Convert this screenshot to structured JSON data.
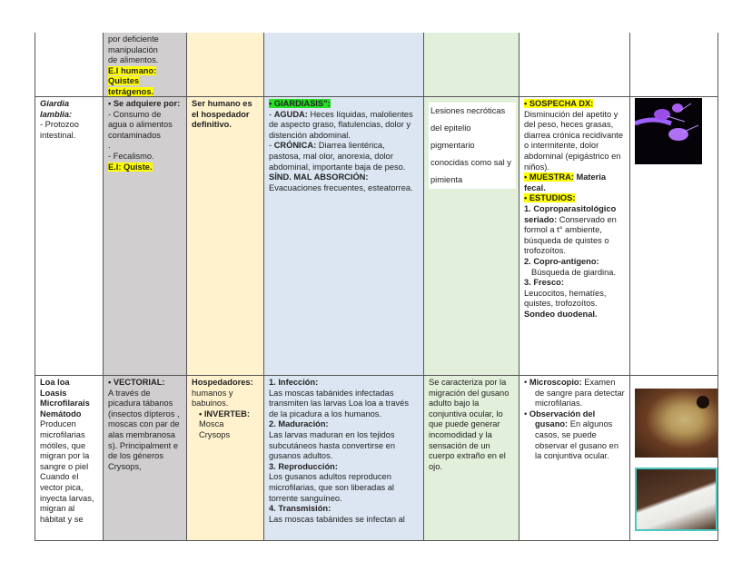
{
  "rows": [
    {
      "cells": [
        [],
        [
          [
            {
              "t": "por deficiente"
            }
          ],
          [
            {
              "t": "manipulación"
            }
          ],
          [
            {
              "t": "de alimentos."
            }
          ],
          [
            {
              "t": "E.I humano:",
              "s": "b hl"
            }
          ],
          [
            {
              "t": "Quistes",
              "s": "b hl"
            }
          ],
          [
            {
              "t": "tetrágenos.",
              "s": "b hl"
            }
          ]
        ],
        [],
        [],
        [],
        [],
        []
      ]
    },
    {
      "cells": [
        [
          [
            {
              "t": "Giardia lamblia:",
              "s": "b i"
            }
          ],
          [
            {
              "t": "- Protozoo intestinal."
            }
          ]
        ],
        [
          [
            {
              "t": "• Se adquiere por:",
              "s": "b"
            }
          ],
          [
            {
              "t": "- Consumo de agua o alimentos contaminados"
            }
          ],
          [
            {
              "t": "."
            }
          ],
          [
            {
              "t": "- Fecalismo."
            }
          ],
          [
            {
              "t": "E.I: Quiste.",
              "s": "b hl"
            }
          ]
        ],
        [
          [
            {
              "t": "Ser humano es el hospedador definitivo.",
              "s": "b"
            }
          ]
        ],
        [
          [
            {
              "t": "• GIARDIASIS\":",
              "s": "b g"
            }
          ],
          [
            {
              "t": "- "
            },
            {
              "t": "AGUDA:",
              "s": "b"
            },
            {
              "t": " Heces líquidas, malolientes de aspecto graso, flatulencias, dolor y distención abdominal."
            }
          ],
          [
            {
              "t": "- "
            },
            {
              "t": "CRÓNICA:",
              "s": "b"
            },
            {
              "t": " Diarrea lientérica, pastosa, mal olor, anorexia, dolor abdominal, importante baja de peso."
            }
          ],
          [
            {
              "t": "SÍND. MAL ABSORCIÓN:",
              "s": "b"
            }
          ],
          [
            {
              "t": "Evacuaciones frecuentes, esteatorrea."
            }
          ]
        ],
        [
          [
            {
              "t": "Lesiones necróticas del epitelio pigmentario conocidas como sal y pimienta"
            }
          ]
        ],
        [
          [
            {
              "t": "• SOSPECHA DX:",
              "s": "b hl"
            }
          ],
          [
            {
              "t": "Disminución del apetito y del peso, heces grasas, diarrea crónica recidivante o intermitente, dolor abdominal (epigástrico en niños)."
            }
          ],
          [
            {
              "t": "• MUESTRA:",
              "s": "b hl"
            },
            {
              "t": " Materia fecal.",
              "s": "b"
            }
          ],
          [
            {
              "t": "• ESTUDIOS:",
              "s": "b hl"
            }
          ],
          [
            {
              "t": "1. Coproparasitológico seriado:",
              "s": "b"
            },
            {
              "t": " Conservado en formol a t° ambiente, búsqueda de quistes o trofozoítos."
            }
          ],
          [
            {
              "t": "2. Copro-antígeno:",
              "s": "b"
            }
          ],
          [
            {
              "t": "Búsqueda de giardina."
            }
          ],
          [
            {
              "t": "3. Fresco:",
              "s": "b"
            }
          ],
          [
            {
              "t": "Leucocitos, hematíes, quistes, trofozoítos."
            }
          ],
          [
            {
              "t": "Sondeo duodenal.",
              "s": "b"
            }
          ]
        ],
        []
      ]
    },
    {
      "cells": [
        [
          [
            {
              "t": "Loa loa",
              "s": "b"
            }
          ],
          [
            {
              "t": "Loasis",
              "s": "b"
            }
          ],
          [
            {
              "t": "Microfilarais",
              "s": "b"
            }
          ],
          [
            {
              "t": "Nemátodo",
              "s": "b"
            }
          ],
          [
            {
              "t": "Producen microfilarias mótiles, que migran por la sangre o piel Cuando el vector pica, inyecta larvas, migran al hábitat y se"
            }
          ]
        ],
        [
          [
            {
              "t": "• VECTORIAL:",
              "s": "b"
            }
          ],
          [
            {
              "t": "A través de picadura tábanos (insectos dípteros , moscas con par de alas membranosa s). Principalment e de los géneros Crysops,"
            }
          ]
        ],
        [
          [
            {
              "t": "Hospedadores:",
              "s": "b"
            }
          ],
          [
            {
              "t": "humanos y babuinos."
            }
          ],
          [
            {
              "t": " "
            }
          ],
          [
            {
              "t": "• INVERTEB:",
              "s": "b"
            }
          ],
          [
            {
              "t": "Mosca"
            }
          ],
          [
            {
              "t": "Crysops"
            }
          ]
        ],
        [
          [
            {
              "t": "1. Infección:",
              "s": "b"
            }
          ],
          [
            {
              "t": "Las moscas tabánides infectadas transmiten las larvas Loa loa a través de la picadura a los humanos."
            }
          ],
          [
            {
              "t": "2. Maduración:",
              "s": "b"
            }
          ],
          [
            {
              "t": "Las larvas maduran en los tejidos subcutáneos hasta convertirse en gusanos adultos."
            }
          ],
          [
            {
              "t": "3. Reproducción:",
              "s": "b"
            }
          ],
          [
            {
              "t": "Los gusanos adultos reproducen microfilarias, que son liberadas al torrente sanguíneo."
            }
          ],
          [
            {
              "t": "4. Transmisión:",
              "s": "b"
            }
          ],
          [
            {
              "t": "Las moscas tabánides se infectan al"
            }
          ]
        ],
        [
          [
            {
              "t": "Se caracteriza por la migración del gusano adulto bajo la conjuntiva ocular, lo que puede generar incomodidad y la sensación de un cuerpo extraño en el ojo."
            }
          ]
        ],
        [
          [
            {
              "t": "•  "
            },
            {
              "t": "Microscopio:",
              "s": "b"
            },
            {
              "t": " Examen de sangre para detectar microfilarias."
            }
          ],
          [
            {
              "t": "•  "
            },
            {
              "t": "Observación del gusano:",
              "s": "b"
            },
            {
              "t": " En algunos casos, se puede observar el gusano en la conjuntiva ocular."
            }
          ]
        ],
        []
      ]
    }
  ],
  "images": [
    "giardia-micrograph",
    "loa-loa-eye-photo",
    "worm-extraction-photo"
  ],
  "colors": {
    "col2": "#d0cece",
    "col3": "#fff2cc",
    "col4": "#dce6f2",
    "col5": "#e2efda",
    "highlight": "#ffff00",
    "highlight_green": "#22e022"
  }
}
